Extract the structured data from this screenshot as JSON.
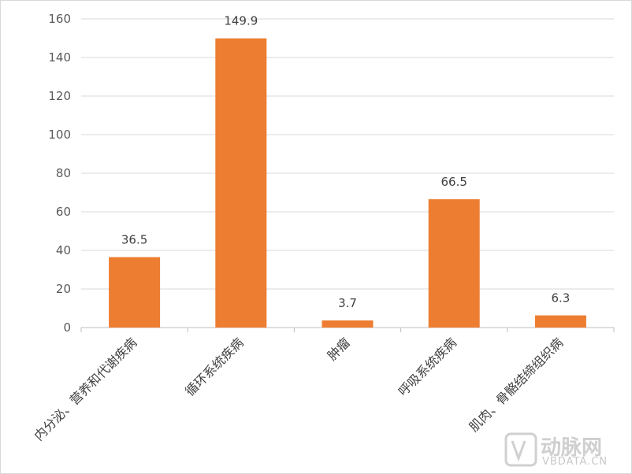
{
  "chart_data": {
    "type": "bar",
    "categories": [
      "内分泌、营养和代谢疾病",
      "循环系统疾病",
      "肿瘤",
      "呼吸系统疾病",
      "肌肉、骨骼结缔组织病"
    ],
    "values": [
      36.5,
      149.9,
      3.7,
      66.5,
      6.3
    ],
    "data_labels": [
      "36.5",
      "149.9",
      "3.7",
      "66.5",
      "6.3"
    ],
    "ylim": [
      0,
      160
    ],
    "yticks": [
      0,
      20,
      40,
      60,
      80,
      100,
      120,
      140,
      160
    ],
    "bar_color": "#ED7D31",
    "grid": true,
    "title": "",
    "xlabel": "",
    "ylabel": ""
  },
  "watermark": {
    "brand_cn": "动脉网",
    "brand_en": "VBDATA.CN"
  }
}
